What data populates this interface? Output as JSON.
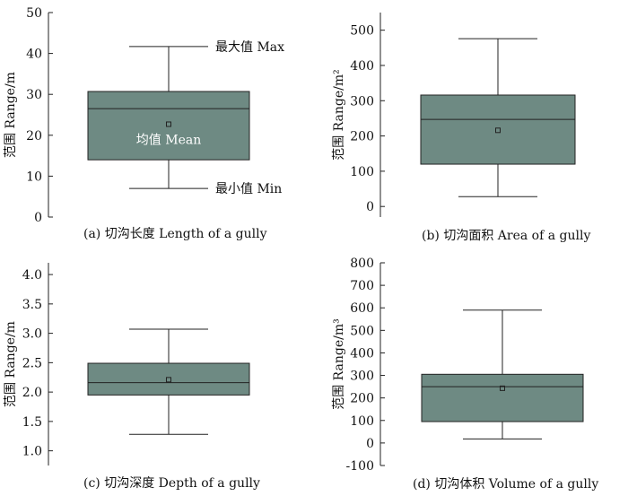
{
  "chart_data": [
    {
      "type": "box",
      "caption": "(a) 切沟长度 Length of a gully",
      "ylabel": "范围 Range/m",
      "ylim": [
        0,
        50
      ],
      "yticks": [
        0,
        10,
        20,
        30,
        40,
        50
      ],
      "box": {
        "min": 7,
        "q1": 14,
        "median": 26.5,
        "q3": 30.7,
        "max": 41.7,
        "mean": 22.7
      },
      "color": "#6e8a83",
      "annotations": {
        "max": "最大值 Max",
        "mean": "均值 Mean",
        "min": "最小值 Min"
      }
    },
    {
      "type": "box",
      "caption": "(b) 切沟面积 Area of a gully",
      "ylabel": "范围 Range/m²",
      "ylim": [
        -30,
        550
      ],
      "yticks": [
        0,
        100,
        200,
        300,
        400,
        500
      ],
      "box": {
        "min": 28,
        "q1": 120,
        "median": 247,
        "q3": 316,
        "max": 476,
        "mean": 216
      },
      "color": "#6e8a83"
    },
    {
      "type": "box",
      "caption": "(c) 切沟深度 Depth of a gully",
      "ylabel": "范围 Range/m",
      "ylim": [
        0.75,
        4.2
      ],
      "yticks": [
        1.0,
        1.5,
        2.0,
        2.5,
        3.0,
        3.5,
        4.0
      ],
      "box": {
        "min": 1.28,
        "q1": 1.95,
        "median": 2.16,
        "q3": 2.49,
        "max": 3.07,
        "mean": 2.21
      },
      "color": "#6e8a83"
    },
    {
      "type": "box",
      "caption": "(d) 切沟体积 Volume of a gully",
      "ylabel": "范围 Range/m³",
      "ylim": [
        -100,
        800
      ],
      "yticks": [
        -100,
        0,
        100,
        200,
        300,
        400,
        500,
        600,
        700,
        800
      ],
      "box": {
        "min": 18,
        "q1": 95,
        "median": 250,
        "q3": 305,
        "max": 590,
        "mean": 243
      },
      "color": "#6e8a83"
    }
  ]
}
